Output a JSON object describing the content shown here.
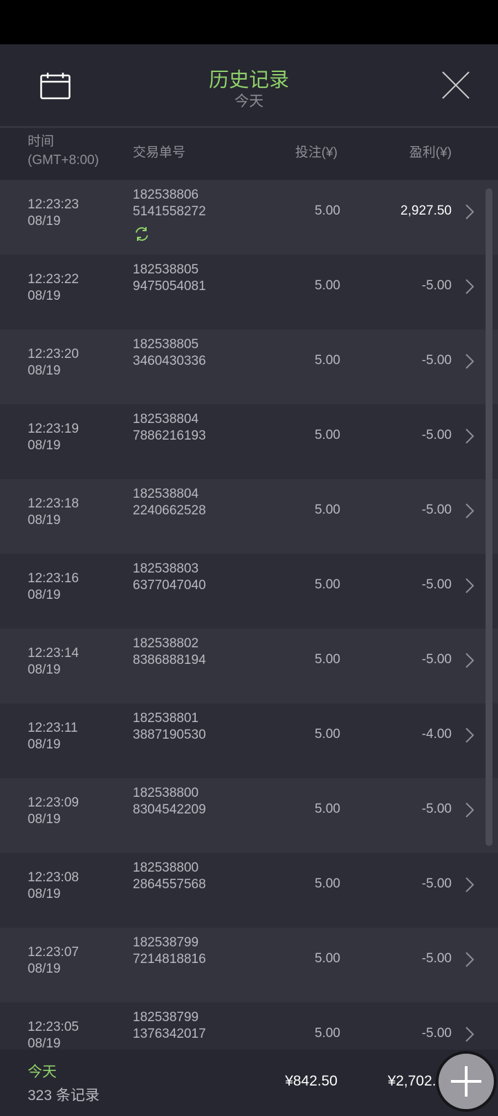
{
  "header": {
    "title": "历史记录",
    "subtitle": "今天"
  },
  "columns": {
    "time": "时间",
    "timezone": "(GMT+8:00)",
    "order": "交易单号",
    "bet": "投注(¥)",
    "profit": "盈利(¥)"
  },
  "rows": [
    {
      "time": "12:23:23",
      "date": "08/19",
      "id1": "182538806",
      "id2": "5141558272",
      "bet": "5.00",
      "profit": "2,927.50",
      "refresh": true
    },
    {
      "time": "12:23:22",
      "date": "08/19",
      "id1": "182538805",
      "id2": "9475054081",
      "bet": "5.00",
      "profit": "-5.00"
    },
    {
      "time": "12:23:20",
      "date": "08/19",
      "id1": "182538805",
      "id2": "3460430336",
      "bet": "5.00",
      "profit": "-5.00"
    },
    {
      "time": "12:23:19",
      "date": "08/19",
      "id1": "182538804",
      "id2": "7886216193",
      "bet": "5.00",
      "profit": "-5.00"
    },
    {
      "time": "12:23:18",
      "date": "08/19",
      "id1": "182538804",
      "id2": "2240662528",
      "bet": "5.00",
      "profit": "-5.00"
    },
    {
      "time": "12:23:16",
      "date": "08/19",
      "id1": "182538803",
      "id2": "6377047040",
      "bet": "5.00",
      "profit": "-5.00"
    },
    {
      "time": "12:23:14",
      "date": "08/19",
      "id1": "182538802",
      "id2": "8386888194",
      "bet": "5.00",
      "profit": "-5.00"
    },
    {
      "time": "12:23:11",
      "date": "08/19",
      "id1": "182538801",
      "id2": "3887190530",
      "bet": "5.00",
      "profit": "-4.00"
    },
    {
      "time": "12:23:09",
      "date": "08/19",
      "id1": "182538800",
      "id2": "8304542209",
      "bet": "5.00",
      "profit": "-5.00"
    },
    {
      "time": "12:23:08",
      "date": "08/19",
      "id1": "182538800",
      "id2": "2864557568",
      "bet": "5.00",
      "profit": "-5.00"
    },
    {
      "time": "12:23:07",
      "date": "08/19",
      "id1": "182538799",
      "id2": "7214818816",
      "bet": "5.00",
      "profit": "-5.00"
    },
    {
      "time": "12:23:05",
      "date": "08/19",
      "id1": "182538799",
      "id2": "1376342017",
      "bet": "5.00",
      "profit": "-5.00"
    }
  ],
  "footer": {
    "period": "今天",
    "count": "323 条记录",
    "total_bet": "¥842.50",
    "total_profit": "¥2,702.25"
  },
  "colors": {
    "accent": "#8fd16a",
    "background": "#2a2b35"
  }
}
